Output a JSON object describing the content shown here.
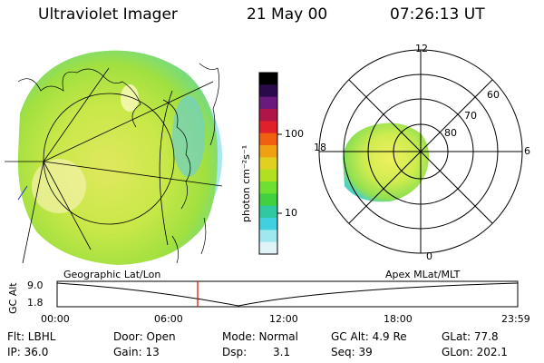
{
  "header": {
    "title": "Ultraviolet Imager",
    "date": "21 May 00",
    "time": "07:26:13 UT"
  },
  "colorbar": {
    "unit_label": "photon cm⁻²s⁻¹",
    "ticks": [
      "100",
      "10"
    ],
    "colors": [
      "#000000",
      "#2a0a4a",
      "#6a1a7a",
      "#b0154a",
      "#e0202a",
      "#f06010",
      "#f0a010",
      "#e0d020",
      "#b0e020",
      "#70e030",
      "#40d040",
      "#30c8a0",
      "#40d0e0",
      "#a0e8f0",
      "#e0f4f8"
    ]
  },
  "polar_plot": {
    "labels": {
      "mlt_top": "12",
      "mlt_right": "6",
      "mlt_left": "18",
      "mlt_bottom": "0",
      "lat_60": "60",
      "lat_70": "70",
      "lat_80": "80"
    }
  },
  "timeline": {
    "ylabel": "GC Alt",
    "left_title": "Geographic Lat/Lon",
    "right_title": "Apex MLat/MLT",
    "y_ticks": [
      "9.0",
      "1.8"
    ],
    "x_ticks": [
      "00:00",
      "06:00",
      "12:00",
      "18:00",
      "23:59"
    ],
    "current_time_marker_color": "#e00000"
  },
  "footer": {
    "filter": "Flt: LBHL",
    "door": "Door: Open",
    "mode": "Mode: Normal",
    "gc_alt": "GC Alt: 4.9 Re",
    "glat": "GLat: 77.8",
    "ip": "IP: 36.0",
    "gain": "Gain: 13",
    "dsp_label": "Dsp:",
    "dsp_value": "3.1",
    "seq": "Seq: 39",
    "glon": "GLon: 202.1"
  }
}
